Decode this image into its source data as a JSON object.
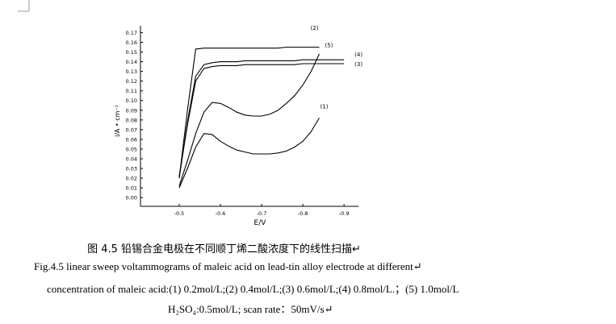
{
  "chart_data": {
    "type": "line",
    "xlabel": "E/V",
    "ylabel": "i/A • cm⁻²",
    "x": [
      -0.5,
      -0.52,
      -0.54,
      -0.56,
      -0.58,
      -0.6,
      -0.62,
      -0.64,
      -0.66,
      -0.68,
      -0.7,
      -0.72,
      -0.74,
      -0.76,
      -0.78,
      -0.8,
      -0.82,
      -0.84,
      -0.86,
      -0.88,
      -0.9
    ],
    "series": [
      {
        "name": "(1)",
        "color": "#000000",
        "values": [
          0.01,
          0.03,
          0.052,
          0.066,
          0.065,
          0.058,
          0.053,
          0.049,
          0.047,
          0.045,
          0.045,
          0.045,
          0.046,
          0.048,
          0.052,
          0.058,
          0.068,
          0.082,
          null,
          null,
          null
        ]
      },
      {
        "name": "(2)",
        "color": "#000000",
        "values": [
          0.012,
          0.038,
          0.066,
          0.088,
          0.098,
          0.097,
          0.093,
          0.088,
          0.085,
          0.084,
          0.084,
          0.086,
          0.09,
          0.097,
          0.105,
          0.116,
          0.13,
          0.148,
          null,
          null,
          null
        ]
      },
      {
        "name": "(3)",
        "color": "#000000",
        "values": [
          0.022,
          0.075,
          0.12,
          0.133,
          0.135,
          0.136,
          0.136,
          0.136,
          0.137,
          0.137,
          0.137,
          0.137,
          0.137,
          0.137,
          0.137,
          0.138,
          0.138,
          0.138,
          0.138,
          0.138,
          0.138
        ]
      },
      {
        "name": "(4)",
        "color": "#000000",
        "values": [
          0.02,
          0.078,
          0.125,
          0.137,
          0.139,
          0.14,
          0.14,
          0.14,
          0.141,
          0.141,
          0.141,
          0.141,
          0.141,
          0.141,
          0.141,
          0.142,
          0.142,
          0.142,
          0.142,
          0.142,
          0.142
        ]
      },
      {
        "name": "(5)",
        "color": "#000000",
        "values": [
          0.02,
          0.09,
          0.153,
          0.154,
          0.154,
          0.154,
          0.154,
          0.154,
          0.154,
          0.154,
          0.154,
          0.154,
          0.154,
          0.155,
          0.155,
          0.155,
          0.155,
          0.155,
          null,
          null,
          null
        ]
      }
    ],
    "xlim": [
      -0.406,
      -0.935
    ],
    "xticks": [
      -0.5,
      -0.6,
      -0.7,
      -0.8,
      -0.9
    ],
    "ylim": [
      -0.009,
      0.177
    ],
    "yticks": [
      {
        "value": 0,
        "label": "0.00"
      },
      {
        "value": 0.01,
        "label": "0.01"
      },
      {
        "value": 0.02,
        "label": "0.02"
      },
      {
        "value": 0.03,
        "label": "0.03"
      },
      {
        "value": 0.04,
        "label": "0.04"
      },
      {
        "value": 0.05,
        "label": "0.05"
      },
      {
        "value": 0.06,
        "label": "0.06"
      },
      {
        "value": 0.07,
        "label": "0.07"
      },
      {
        "value": 0.08,
        "label": "0.08"
      },
      {
        "value": 0.09,
        "label": "0.09"
      },
      {
        "value": 0.1,
        "label": "0.10"
      },
      {
        "value": 0.11,
        "label": "0.11"
      },
      {
        "value": 0.12,
        "label": "0.12"
      },
      {
        "value": 0.13,
        "label": "0.13"
      },
      {
        "value": 0.14,
        "label": "0.14"
      },
      {
        "value": 0.15,
        "label": "0.15"
      },
      {
        "value": 0.16,
        "label": "0.16"
      },
      {
        "value": 0.17,
        "label": "0.17"
      }
    ]
  },
  "caption": {
    "zh": "图 4.5 铅锡合金电极在不同顺丁烯二酸浓度下的线性扫描↵",
    "en": [
      "Fig.4.5 linear sweep voltammograms of maleic acid on lead-tin alloy electrode at different↵",
      "concentration of maleic acid:(1) 0.2mol/L;(2) 0.4mol/L;(3) 0.6mol/L;(4) 0.8mol/L.；(5) 1.0mol/L",
      "H₂SO₄:0.5mol/L; scan rate：50mV/s↵"
    ]
  }
}
